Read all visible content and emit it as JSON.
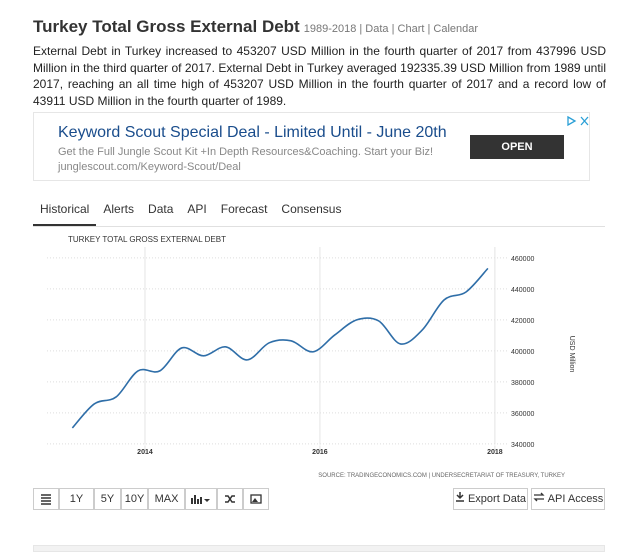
{
  "header": {
    "title": "Turkey Total Gross External Debt",
    "subtitle": "1989-2018 | Data | Chart | Calendar"
  },
  "summary": "External Debt in Turkey increased to 453207 USD Million in the fourth quarter of 2017 from 437996 USD Million in the third quarter of 2017. External Debt in Turkey averaged 192335.39 USD Million from 1989 until 2017, reaching an all time high of 453207 USD Million in the fourth quarter of 2017 and a record low of 43911 USD Million in the fourth quarter of 1989.",
  "ad": {
    "title": "Keyword Scout Special Deal - Limited Until - June 20th",
    "text": "Get the Full Jungle Scout Kit +In Depth Resources&Coaching. Start your Biz!",
    "url": "junglescout.com/Keyword-Scout/Deal",
    "button": "OPEN"
  },
  "tabs": [
    "Historical",
    "Alerts",
    "Data",
    "API",
    "Forecast",
    "Consensus"
  ],
  "chart_data": {
    "type": "line",
    "title": "TURKEY TOTAL GROSS EXTERNAL DEBT",
    "y_label": "USD Million",
    "source": "SOURCE: TRADINGECONOMICS.COM | UNDERSECRETARIAT OF TREASURY, TURKEY",
    "color": "#2f6ea8",
    "grid": true,
    "x": [
      2013.17,
      2013.42,
      2013.67,
      2013.92,
      2014.17,
      2014.42,
      2014.67,
      2014.92,
      2015.17,
      2015.42,
      2015.67,
      2015.92,
      2016.17,
      2016.42,
      2016.67,
      2016.92,
      2017.17,
      2017.42,
      2017.67,
      2017.92
    ],
    "values": [
      350300,
      365800,
      370300,
      387100,
      387100,
      401900,
      396800,
      402600,
      394200,
      405200,
      406500,
      399400,
      410300,
      420000,
      419400,
      404500,
      413500,
      432900,
      437996,
      453207
    ],
    "xlim": [
      2012.88,
      2018.15
    ],
    "xticks": [
      2014,
      2016,
      2018
    ],
    "ylim": [
      333500,
      467000
    ],
    "yticks": [
      340000,
      360000,
      380000,
      400000,
      420000,
      440000,
      460000
    ]
  },
  "toolbar": {
    "ranges": [
      "1Y",
      "5Y",
      "10Y",
      "MAX"
    ],
    "export": "Export Data",
    "api": "API Access"
  }
}
